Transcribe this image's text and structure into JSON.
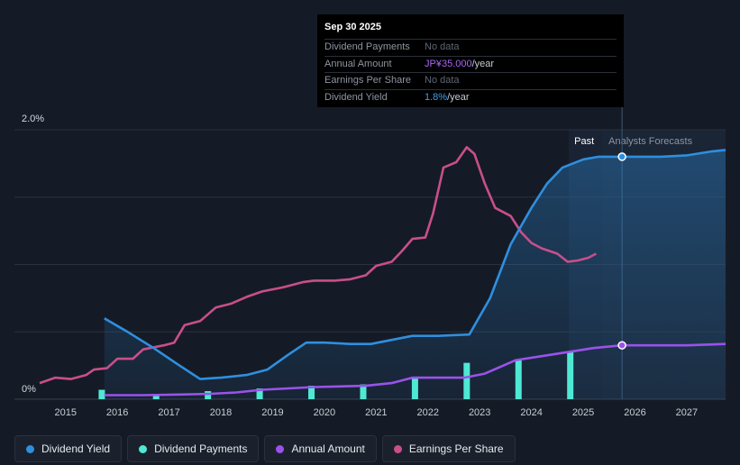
{
  "chart_data": {
    "type": "line",
    "y_axis": {
      "min": 0,
      "max": 2.0,
      "unit": "%",
      "tick_labels": [
        "2.0%",
        "0%"
      ]
    },
    "x_axis": {
      "tick_labels": [
        "2015",
        "2016",
        "2017",
        "2018",
        "2019",
        "2020",
        "2021",
        "2022",
        "2023",
        "2024",
        "2025",
        "2026",
        "2027"
      ],
      "range": [
        2014.5,
        2027.75
      ]
    },
    "regions": {
      "past_label": "Past",
      "forecast_label": "Analysts Forecasts",
      "forecast_start": 2025.35,
      "cursor_x": 2025.75
    },
    "series": [
      {
        "name": "Dividend Yield",
        "color": "#2f8fdf",
        "area": true,
        "points": [
          [
            2015.75,
            0.6
          ],
          [
            2016.2,
            0.5
          ],
          [
            2016.7,
            0.38
          ],
          [
            2017.2,
            0.25
          ],
          [
            2017.6,
            0.15
          ],
          [
            2018.0,
            0.16
          ],
          [
            2018.5,
            0.18
          ],
          [
            2018.9,
            0.22
          ],
          [
            2019.3,
            0.33
          ],
          [
            2019.65,
            0.42
          ],
          [
            2020.0,
            0.42
          ],
          [
            2020.5,
            0.41
          ],
          [
            2020.9,
            0.41
          ],
          [
            2021.3,
            0.44
          ],
          [
            2021.7,
            0.47
          ],
          [
            2022.2,
            0.47
          ],
          [
            2022.8,
            0.48
          ],
          [
            2023.2,
            0.75
          ],
          [
            2023.6,
            1.15
          ],
          [
            2024.0,
            1.42
          ],
          [
            2024.3,
            1.6
          ],
          [
            2024.6,
            1.72
          ],
          [
            2025.0,
            1.78
          ],
          [
            2025.3,
            1.8
          ],
          [
            2025.75,
            1.8
          ],
          [
            2026.5,
            1.8
          ],
          [
            2027.0,
            1.81
          ],
          [
            2027.5,
            1.84
          ],
          [
            2027.75,
            1.85
          ]
        ]
      },
      {
        "name": "Dividend Payments",
        "color": "#4fe8d4",
        "type": "bar",
        "bars": [
          [
            2015.7,
            0.07
          ],
          [
            2016.75,
            0.04
          ],
          [
            2017.75,
            0.06
          ],
          [
            2018.75,
            0.08
          ],
          [
            2019.75,
            0.1
          ],
          [
            2020.75,
            0.11
          ],
          [
            2021.75,
            0.16
          ],
          [
            2022.75,
            0.27
          ],
          [
            2023.75,
            0.29
          ],
          [
            2024.75,
            0.35
          ]
        ]
      },
      {
        "name": "Annual Amount",
        "color": "#9b52ea",
        "points": [
          [
            2015.75,
            0.03
          ],
          [
            2016.5,
            0.03
          ],
          [
            2017.2,
            0.035
          ],
          [
            2017.8,
            0.04
          ],
          [
            2018.3,
            0.05
          ],
          [
            2018.8,
            0.07
          ],
          [
            2019.3,
            0.08
          ],
          [
            2019.8,
            0.09
          ],
          [
            2020.3,
            0.095
          ],
          [
            2020.8,
            0.1
          ],
          [
            2021.3,
            0.12
          ],
          [
            2021.7,
            0.16
          ],
          [
            2022.2,
            0.16
          ],
          [
            2022.7,
            0.16
          ],
          [
            2023.1,
            0.19
          ],
          [
            2023.7,
            0.29
          ],
          [
            2024.2,
            0.32
          ],
          [
            2024.7,
            0.35
          ],
          [
            2025.2,
            0.38
          ],
          [
            2025.75,
            0.4
          ],
          [
            2026.5,
            0.4
          ],
          [
            2027.0,
            0.4
          ],
          [
            2027.75,
            0.41
          ]
        ]
      },
      {
        "name": "Earnings Per Share",
        "color": "#c84f8a",
        "points": [
          [
            2014.5,
            0.12
          ],
          [
            2014.8,
            0.16
          ],
          [
            2015.1,
            0.15
          ],
          [
            2015.4,
            0.18
          ],
          [
            2015.55,
            0.22
          ],
          [
            2015.8,
            0.23
          ],
          [
            2016.0,
            0.3
          ],
          [
            2016.3,
            0.3
          ],
          [
            2016.5,
            0.37
          ],
          [
            2016.9,
            0.4
          ],
          [
            2017.1,
            0.42
          ],
          [
            2017.3,
            0.55
          ],
          [
            2017.6,
            0.58
          ],
          [
            2017.9,
            0.68
          ],
          [
            2018.2,
            0.71
          ],
          [
            2018.5,
            0.76
          ],
          [
            2018.8,
            0.8
          ],
          [
            2019.2,
            0.83
          ],
          [
            2019.6,
            0.87
          ],
          [
            2019.8,
            0.88
          ],
          [
            2020.2,
            0.88
          ],
          [
            2020.5,
            0.89
          ],
          [
            2020.8,
            0.92
          ],
          [
            2021.0,
            0.99
          ],
          [
            2021.3,
            1.02
          ],
          [
            2021.5,
            1.1
          ],
          [
            2021.7,
            1.19
          ],
          [
            2021.95,
            1.2
          ],
          [
            2022.1,
            1.38
          ],
          [
            2022.3,
            1.72
          ],
          [
            2022.55,
            1.76
          ],
          [
            2022.75,
            1.87
          ],
          [
            2022.9,
            1.82
          ],
          [
            2023.1,
            1.6
          ],
          [
            2023.3,
            1.42
          ],
          [
            2023.6,
            1.36
          ],
          [
            2023.8,
            1.24
          ],
          [
            2024.0,
            1.16
          ],
          [
            2024.2,
            1.12
          ],
          [
            2024.5,
            1.08
          ],
          [
            2024.7,
            1.02
          ],
          [
            2024.9,
            1.03
          ],
          [
            2025.1,
            1.05
          ],
          [
            2025.25,
            1.08
          ]
        ]
      }
    ]
  },
  "tooltip": {
    "date": "Sep 30 2025",
    "rows": [
      {
        "label": "Dividend Payments",
        "value": "No data",
        "highlight": "",
        "suffix": ""
      },
      {
        "label": "Annual Amount",
        "value": "",
        "highlight": "JP¥35.000",
        "highlight_color": "purple",
        "suffix": "/year"
      },
      {
        "label": "Earnings Per Share",
        "value": "No data",
        "highlight": "",
        "suffix": ""
      },
      {
        "label": "Dividend Yield",
        "value": "",
        "highlight": "1.8%",
        "highlight_color": "blue",
        "suffix": "/year"
      }
    ]
  },
  "legend": [
    {
      "label": "Dividend Yield",
      "color": "#2f8fdf"
    },
    {
      "label": "Dividend Payments",
      "color": "#4fe8d4"
    },
    {
      "label": "Annual Amount",
      "color": "#9b52ea"
    },
    {
      "label": "Earnings Per Share",
      "color": "#c84f8a"
    }
  ]
}
